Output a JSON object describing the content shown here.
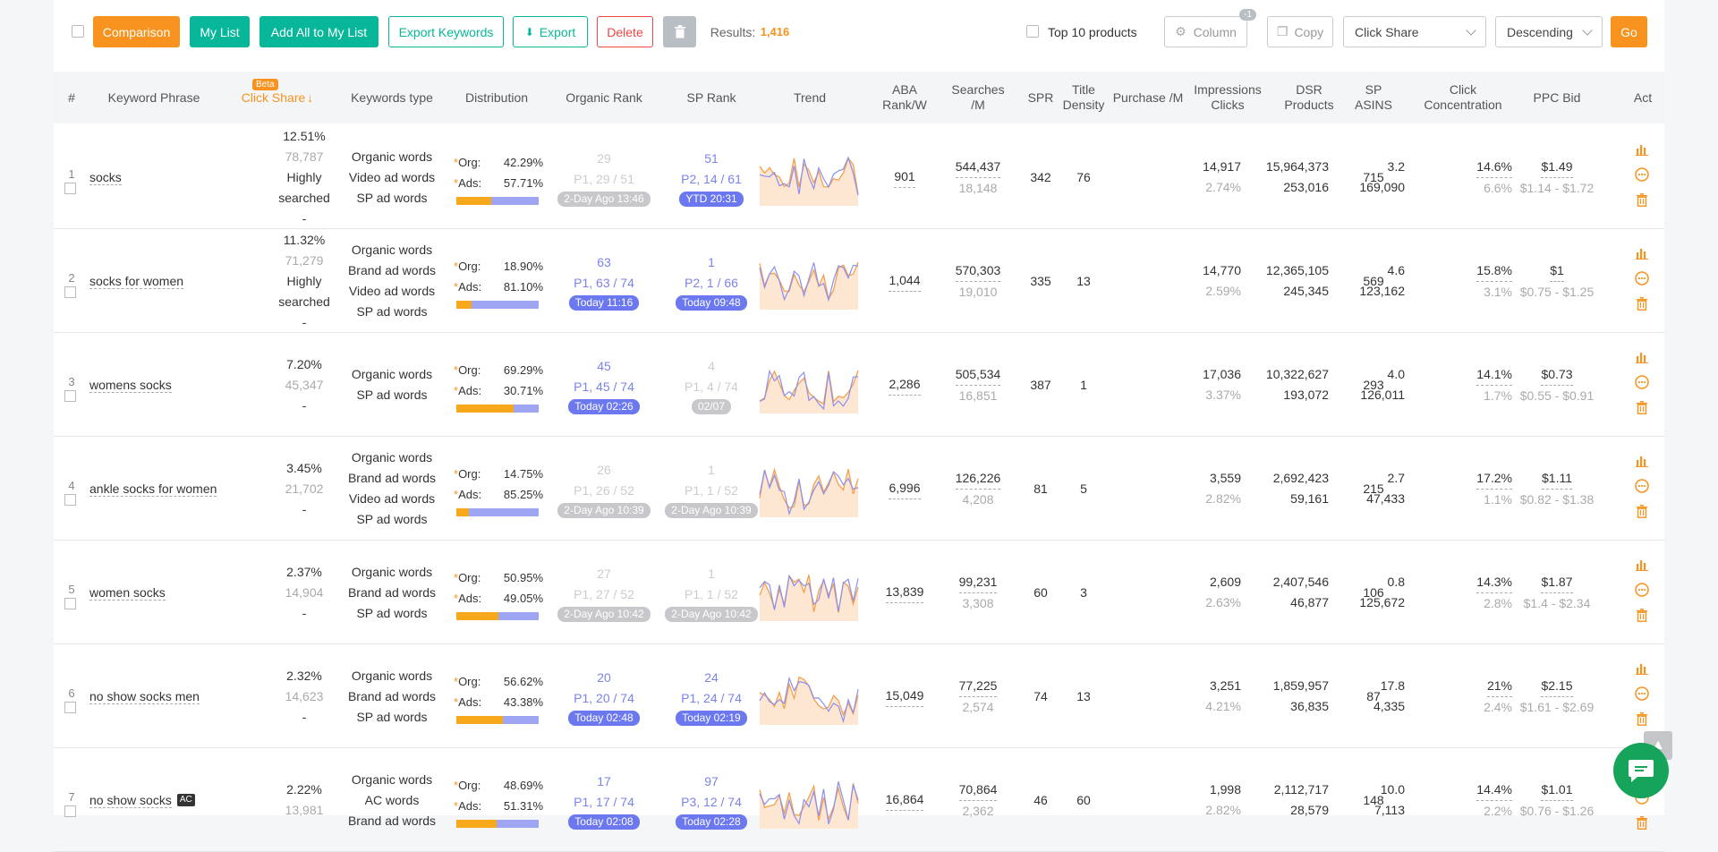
{
  "toolbar": {
    "comparison": "Comparison",
    "my_list": "My List",
    "add_all": "Add All to My List",
    "export_keywords": "Export Keywords",
    "export": "Export",
    "delete": "Delete",
    "results_label": "Results:",
    "results_value": "1,416",
    "top10_label": "Top 10 products",
    "column": "Column",
    "column_badge": "-1",
    "copy": "Copy",
    "sort_field": "Click Share",
    "sort_order": "Descending",
    "go": "Go"
  },
  "columns": {
    "num": "#",
    "keyword": "Keyword Phrase",
    "click_share": "Click Share",
    "beta": "Beta",
    "kw_type": "Keywords type",
    "distribution": "Distribution",
    "organic_rank": "Organic Rank",
    "sp_rank": "SP Rank",
    "trend": "Trend",
    "aba": "ABA Rank/W",
    "searches": "Searches /M",
    "spr": "SPR",
    "title_density": "Title Density",
    "purchase": "Purchase /M",
    "impressions": "Impressions Clicks",
    "dsr": "DSR Products",
    "sp_asins": "SP ASINS",
    "click_conc": "Click Concentration",
    "ppc": "PPC Bid",
    "act": "Act"
  },
  "labels": {
    "org": "Org:",
    "ads": "Ads:",
    "star": "*"
  },
  "colors": {
    "accent": "#f7931e",
    "teal": "#08b79a",
    "blue": "#6b78ef",
    "red": "#f04545"
  },
  "rows": [
    {
      "n": "1",
      "kw": "socks",
      "ac": "",
      "cs": "12.51%",
      "cs2": "78,787",
      "hs": "Highly searched",
      "dash": "-",
      "types": [
        "Organic words",
        "Video ad words",
        "SP ad words"
      ],
      "org": "42.29%",
      "ads": "57.71%",
      "org_frac": 0.4229,
      "or1": "29",
      "or2": "P1, 29 / 51",
      "or3": "2-Day Ago 13:46",
      "or_active": false,
      "sp1": "51",
      "sp2": "P2, 14 / 61",
      "sp3": "YTD 20:31",
      "sp_active": true,
      "aba": "901",
      "s1": "544,437",
      "s2": "18,148",
      "spr": "342",
      "td": "76",
      "p1": "14,917",
      "p2": "2.74%",
      "i1": "15,964,373",
      "i2": "253,016",
      "d1": "3.2",
      "d2": "169,090",
      "asins": "715",
      "c1": "14.6%",
      "c2": "6.6%",
      "ppc1": "$1.49",
      "ppc2": "$1.14 - $1.72"
    },
    {
      "n": "2",
      "kw": "socks for women",
      "ac": "",
      "cs": "11.32%",
      "cs2": "71,279",
      "hs": "Highly searched",
      "dash": "-",
      "types": [
        "Organic words",
        "Brand ad words",
        "Video ad words",
        "SP ad words"
      ],
      "org": "18.90%",
      "ads": "81.10%",
      "org_frac": 0.189,
      "or1": "63",
      "or2": "P1, 63 / 74",
      "or3": "Today 11:16",
      "or_active": true,
      "sp1": "1",
      "sp2": "P2, 1 / 66",
      "sp3": "Today 09:48",
      "sp_active": true,
      "aba": "1,044",
      "s1": "570,303",
      "s2": "19,010",
      "spr": "335",
      "td": "13",
      "p1": "14,770",
      "p2": "2.59%",
      "i1": "12,365,105",
      "i2": "245,345",
      "d1": "4.6",
      "d2": "123,162",
      "asins": "569",
      "c1": "15.8%",
      "c2": "3.1%",
      "ppc1": "$1",
      "ppc2": "$0.75 - $1.25"
    },
    {
      "n": "3",
      "kw": "womens socks",
      "ac": "",
      "cs": "7.20%",
      "cs2": "45,347",
      "hs": "",
      "dash": "-",
      "types": [
        "Organic words",
        "SP ad words"
      ],
      "org": "69.29%",
      "ads": "30.71%",
      "org_frac": 0.6929,
      "or1": "45",
      "or2": "P1, 45 / 74",
      "or3": "Today 02:26",
      "or_active": true,
      "sp1": "4",
      "sp2": "P1, 4 / 74",
      "sp3": "02/07",
      "sp_active": false,
      "aba": "2,286",
      "s1": "505,534",
      "s2": "16,851",
      "spr": "387",
      "td": "1",
      "p1": "17,036",
      "p2": "3.37%",
      "i1": "10,322,627",
      "i2": "193,072",
      "d1": "4.0",
      "d2": "126,011",
      "asins": "293",
      "c1": "14.1%",
      "c2": "1.7%",
      "ppc1": "$0.73",
      "ppc2": "$0.55 - $0.91"
    },
    {
      "n": "4",
      "kw": "ankle socks for women",
      "ac": "",
      "cs": "3.45%",
      "cs2": "21,702",
      "hs": "",
      "dash": "-",
      "types": [
        "Organic words",
        "Brand ad words",
        "Video ad words",
        "SP ad words"
      ],
      "org": "14.75%",
      "ads": "85.25%",
      "org_frac": 0.1475,
      "or1": "26",
      "or2": "P1, 26 / 52",
      "or3": "2-Day Ago 10:39",
      "or_active": false,
      "sp1": "1",
      "sp2": "P1, 1 / 52",
      "sp3": "2-Day Ago 10:39",
      "sp_active": false,
      "aba": "6,996",
      "s1": "126,226",
      "s2": "4,208",
      "spr": "81",
      "td": "5",
      "p1": "3,559",
      "p2": "2.82%",
      "i1": "2,692,423",
      "i2": "59,161",
      "d1": "2.7",
      "d2": "47,433",
      "asins": "215",
      "c1": "17.2%",
      "c2": "1.1%",
      "ppc1": "$1.11",
      "ppc2": "$0.82 - $1.38"
    },
    {
      "n": "5",
      "kw": "women socks",
      "ac": "",
      "cs": "2.37%",
      "cs2": "14,904",
      "hs": "",
      "dash": "-",
      "types": [
        "Organic words",
        "Brand ad words",
        "SP ad words"
      ],
      "org": "50.95%",
      "ads": "49.05%",
      "org_frac": 0.5095,
      "or1": "27",
      "or2": "P1, 27 / 52",
      "or3": "2-Day Ago 10:42",
      "or_active": false,
      "sp1": "1",
      "sp2": "P1, 1 / 52",
      "sp3": "2-Day Ago 10:42",
      "sp_active": false,
      "aba": "13,839",
      "s1": "99,231",
      "s2": "3,308",
      "spr": "60",
      "td": "3",
      "p1": "2,609",
      "p2": "2.63%",
      "i1": "2,407,546",
      "i2": "46,877",
      "d1": "0.8",
      "d2": "125,672",
      "asins": "106",
      "c1": "14.3%",
      "c2": "2.8%",
      "ppc1": "$1.87",
      "ppc2": "$1.4 - $2.34"
    },
    {
      "n": "6",
      "kw": "no show socks men",
      "ac": "",
      "cs": "2.32%",
      "cs2": "14,623",
      "hs": "",
      "dash": "-",
      "types": [
        "Organic words",
        "Brand ad words",
        "SP ad words"
      ],
      "org": "56.62%",
      "ads": "43.38%",
      "org_frac": 0.5662,
      "or1": "20",
      "or2": "P1, 20 / 74",
      "or3": "Today 02:48",
      "or_active": true,
      "sp1": "24",
      "sp2": "P1, 24 / 74",
      "sp3": "Today 02:19",
      "sp_active": true,
      "aba": "15,049",
      "s1": "77,225",
      "s2": "2,574",
      "spr": "74",
      "td": "13",
      "p1": "3,251",
      "p2": "4.21%",
      "i1": "1,859,957",
      "i2": "36,835",
      "d1": "17.8",
      "d2": "4,335",
      "asins": "87",
      "c1": "21%",
      "c2": "2.4%",
      "ppc1": "$2.15",
      "ppc2": "$1.61 - $2.69"
    },
    {
      "n": "7",
      "kw": "no show socks",
      "ac": "AC",
      "cs": "2.22%",
      "cs2": "13,981",
      "hs": "",
      "dash": "",
      "types": [
        "Organic words",
        "AC words",
        "Brand ad words"
      ],
      "org": "48.69%",
      "ads": "51.31%",
      "org_frac": 0.4869,
      "or1": "17",
      "or2": "P1, 17 / 74",
      "or3": "Today 02:08",
      "or_active": true,
      "sp1": "97",
      "sp2": "P3, 12 / 74",
      "sp3": "Today 02:28",
      "sp_active": true,
      "aba": "16,864",
      "s1": "70,864",
      "s2": "2,362",
      "spr": "46",
      "td": "60",
      "p1": "1,998",
      "p2": "2.82%",
      "i1": "2,112,717",
      "i2": "28,579",
      "d1": "10.0",
      "d2": "7,113",
      "asins": "148",
      "c1": "14.4%",
      "c2": "2.2%",
      "ppc1": "$1.01",
      "ppc2": "$0.76 - $1.26"
    }
  ]
}
